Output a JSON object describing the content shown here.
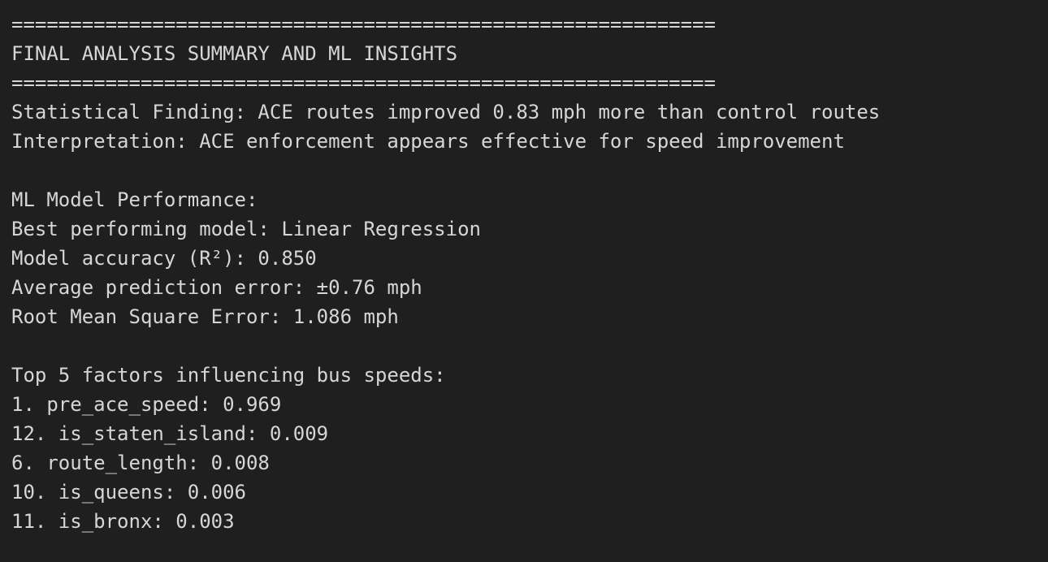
{
  "header": {
    "rule_top": "============================================================",
    "title": "FINAL ANALYSIS SUMMARY AND ML INSIGHTS",
    "rule_bottom": "============================================================"
  },
  "blocks": [
    {
      "lines": [
        "Statistical Finding: ACE routes improved 0.83 mph more than control routes",
        "Interpretation: ACE enforcement appears effective for speed improvement"
      ]
    },
    {
      "lines": [
        "ML Model Performance:",
        "Best performing model: Linear Regression",
        "Model accuracy (R²): 0.850",
        "Average prediction error: ±0.76 mph",
        "Root Mean Square Error: 1.086 mph"
      ]
    },
    {
      "lines": [
        "Top 5 factors influencing bus speeds:",
        "1. pre_ace_speed: 0.969",
        "12. is_staten_island: 0.009",
        "6. route_length: 0.008",
        "10. is_queens: 0.006",
        "11. is_bronx: 0.003"
      ]
    }
  ]
}
